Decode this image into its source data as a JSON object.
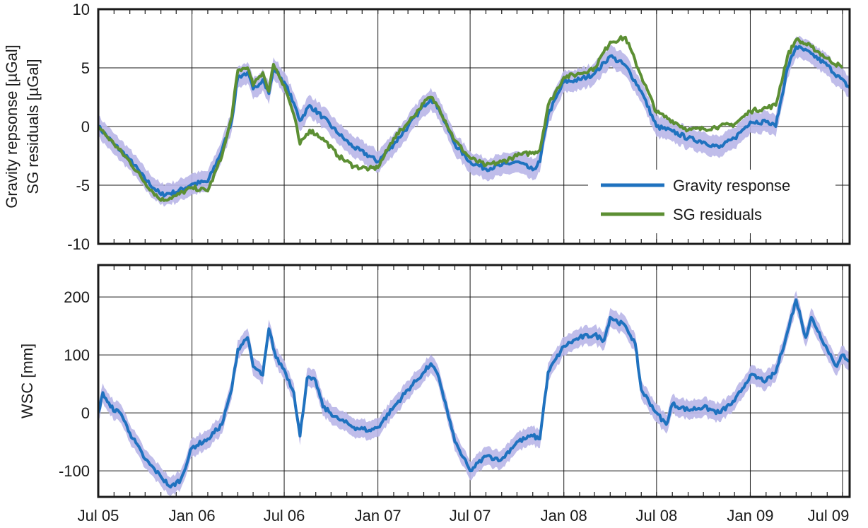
{
  "chart_data": [
    {
      "type": "line",
      "ylabel_lines": [
        "Gravity repsonse [µGal]",
        "SG residuals [µGal]"
      ],
      "ylim": [
        -10,
        10
      ],
      "yticks": [
        -10,
        -5,
        0,
        5,
        10
      ],
      "xlim": [
        "2005-07-01",
        "2009-07-15"
      ],
      "grid": true,
      "legend": {
        "position": "bottom-right",
        "entries": [
          "Gravity response",
          "SG residuals"
        ]
      },
      "series": [
        {
          "name": "Gravity response",
          "color": "#1f72bf",
          "band_color": "#b9b6e8",
          "band_halfwidth": 0.9,
          "points": [
            [
              "2005-07-01",
              0.0
            ],
            [
              "2005-08-01",
              -1.5
            ],
            [
              "2005-09-01",
              -2.8
            ],
            [
              "2005-10-01",
              -4.5
            ],
            [
              "2005-11-01",
              -5.8
            ],
            [
              "2005-12-01",
              -5.6
            ],
            [
              "2006-01-01",
              -4.9
            ],
            [
              "2006-02-01",
              -4.7
            ],
            [
              "2006-03-01",
              -2.0
            ],
            [
              "2006-03-20",
              0.5
            ],
            [
              "2006-04-01",
              4.2
            ],
            [
              "2006-04-20",
              4.6
            ],
            [
              "2006-05-01",
              3.2
            ],
            [
              "2006-05-20",
              4.0
            ],
            [
              "2006-06-01",
              2.8
            ],
            [
              "2006-06-10",
              5.0
            ],
            [
              "2006-07-01",
              3.8
            ],
            [
              "2006-07-20",
              2.0
            ],
            [
              "2006-08-01",
              0.5
            ],
            [
              "2006-08-20",
              1.8
            ],
            [
              "2006-09-15",
              0.8
            ],
            [
              "2006-10-15",
              -0.6
            ],
            [
              "2006-11-15",
              -1.8
            ],
            [
              "2006-12-15",
              -2.5
            ],
            [
              "2007-01-01",
              -3.0
            ],
            [
              "2007-02-01",
              -1.5
            ],
            [
              "2007-03-01",
              0.0
            ],
            [
              "2007-04-01",
              1.8
            ],
            [
              "2007-04-15",
              2.4
            ],
            [
              "2007-05-01",
              1.5
            ],
            [
              "2007-06-01",
              -1.5
            ],
            [
              "2007-07-01",
              -3.0
            ],
            [
              "2007-08-01",
              -3.6
            ],
            [
              "2007-09-01",
              -3.3
            ],
            [
              "2007-10-01",
              -3.0
            ],
            [
              "2007-11-01",
              -3.7
            ],
            [
              "2007-11-15",
              -3.0
            ],
            [
              "2007-12-01",
              1.0
            ],
            [
              "2008-01-01",
              3.8
            ],
            [
              "2008-02-01",
              4.0
            ],
            [
              "2008-03-01",
              4.5
            ],
            [
              "2008-04-01",
              6.0
            ],
            [
              "2008-05-01",
              5.2
            ],
            [
              "2008-06-01",
              3.0
            ],
            [
              "2008-07-01",
              0.0
            ],
            [
              "2008-08-01",
              -0.4
            ],
            [
              "2008-09-01",
              -1.0
            ],
            [
              "2008-10-01",
              -1.3
            ],
            [
              "2008-11-01",
              -1.8
            ],
            [
              "2008-12-01",
              -1.0
            ],
            [
              "2009-01-01",
              0.4
            ],
            [
              "2009-02-01",
              0.4
            ],
            [
              "2009-02-20",
              0.0
            ],
            [
              "2009-03-15",
              5.0
            ],
            [
              "2009-04-01",
              6.8
            ],
            [
              "2009-05-01",
              6.2
            ],
            [
              "2009-06-01",
              5.2
            ],
            [
              "2009-07-15",
              3.3
            ]
          ]
        },
        {
          "name": "SG residuals",
          "color": "#5c8f33",
          "points": [
            [
              "2005-07-01",
              0.0
            ],
            [
              "2005-08-01",
              -1.5
            ],
            [
              "2005-09-01",
              -3.0
            ],
            [
              "2005-10-01",
              -4.8
            ],
            [
              "2005-11-01",
              -6.3
            ],
            [
              "2005-12-01",
              -5.9
            ],
            [
              "2006-01-01",
              -5.2
            ],
            [
              "2006-02-01",
              -5.5
            ],
            [
              "2006-03-01",
              -2.5
            ],
            [
              "2006-03-20",
              0.8
            ],
            [
              "2006-04-01",
              4.8
            ],
            [
              "2006-04-20",
              5.0
            ],
            [
              "2006-05-01",
              3.5
            ],
            [
              "2006-05-20",
              4.6
            ],
            [
              "2006-06-01",
              3.0
            ],
            [
              "2006-06-10",
              5.3
            ],
            [
              "2006-07-01",
              3.5
            ],
            [
              "2006-07-20",
              1.0
            ],
            [
              "2006-08-01",
              -1.5
            ],
            [
              "2006-08-20",
              -0.3
            ],
            [
              "2006-09-15",
              -1.0
            ],
            [
              "2006-10-15",
              -2.5
            ],
            [
              "2006-11-15",
              -3.4
            ],
            [
              "2006-12-15",
              -3.6
            ],
            [
              "2007-01-01",
              -3.5
            ],
            [
              "2007-02-01",
              -1.0
            ],
            [
              "2007-03-01",
              0.3
            ],
            [
              "2007-04-01",
              2.0
            ],
            [
              "2007-04-15",
              2.5
            ],
            [
              "2007-05-01",
              1.6
            ],
            [
              "2007-06-01",
              -1.2
            ],
            [
              "2007-07-01",
              -2.7
            ],
            [
              "2007-08-01",
              -3.3
            ],
            [
              "2007-09-01",
              -3.0
            ],
            [
              "2007-10-01",
              -2.5
            ],
            [
              "2007-11-01",
              -2.2
            ],
            [
              "2007-11-15",
              -2.0
            ],
            [
              "2007-12-01",
              1.8
            ],
            [
              "2008-01-01",
              4.2
            ],
            [
              "2008-02-01",
              4.5
            ],
            [
              "2008-03-01",
              5.0
            ],
            [
              "2008-04-01",
              7.2
            ],
            [
              "2008-05-01",
              7.6
            ],
            [
              "2008-06-01",
              4.3
            ],
            [
              "2008-07-01",
              1.2
            ],
            [
              "2008-08-01",
              0.5
            ],
            [
              "2008-09-01",
              -0.3
            ],
            [
              "2008-10-01",
              -0.2
            ],
            [
              "2008-11-01",
              0.0
            ],
            [
              "2008-12-01",
              0.2
            ],
            [
              "2009-01-01",
              1.3
            ],
            [
              "2009-02-01",
              1.6
            ],
            [
              "2009-02-20",
              1.8
            ],
            [
              "2009-03-15",
              6.0
            ],
            [
              "2009-04-01",
              7.4
            ],
            [
              "2009-05-01",
              6.8
            ],
            [
              "2009-06-01",
              5.8
            ],
            [
              "2009-07-01",
              5.0
            ]
          ]
        }
      ]
    },
    {
      "type": "line",
      "ylabel": "WSC [mm]",
      "ylim": [
        -145,
        255
      ],
      "yticks": [
        -100,
        0,
        100,
        200
      ],
      "xlim": [
        "2005-07-01",
        "2009-07-15"
      ],
      "grid": true,
      "series": [
        {
          "color": "#1f72bf",
          "band_color": "#b9b6e8",
          "band_halfwidth": 16,
          "points": [
            [
              "2005-07-01",
              0
            ],
            [
              "2005-07-10",
              35
            ],
            [
              "2005-07-25",
              10
            ],
            [
              "2005-08-15",
              -2
            ],
            [
              "2005-09-01",
              -35
            ],
            [
              "2005-10-01",
              -80
            ],
            [
              "2005-11-01",
              -110
            ],
            [
              "2005-11-20",
              -128
            ],
            [
              "2005-12-10",
              -115
            ],
            [
              "2006-01-01",
              -60
            ],
            [
              "2006-02-01",
              -45
            ],
            [
              "2006-03-01",
              -20
            ],
            [
              "2006-03-20",
              40
            ],
            [
              "2006-04-01",
              110
            ],
            [
              "2006-04-20",
              130
            ],
            [
              "2006-05-01",
              80
            ],
            [
              "2006-05-20",
              65
            ],
            [
              "2006-06-01",
              145
            ],
            [
              "2006-06-15",
              95
            ],
            [
              "2006-07-01",
              75
            ],
            [
              "2006-07-20",
              35
            ],
            [
              "2006-08-01",
              -40
            ],
            [
              "2006-08-15",
              60
            ],
            [
              "2006-09-01",
              55
            ],
            [
              "2006-09-15",
              10
            ],
            [
              "2006-10-15",
              -10
            ],
            [
              "2006-11-15",
              -25
            ],
            [
              "2006-12-15",
              -30
            ],
            [
              "2007-01-01",
              -25
            ],
            [
              "2007-02-01",
              10
            ],
            [
              "2007-03-01",
              40
            ],
            [
              "2007-04-01",
              70
            ],
            [
              "2007-04-15",
              85
            ],
            [
              "2007-05-01",
              60
            ],
            [
              "2007-06-01",
              -50
            ],
            [
              "2007-07-01",
              -100
            ],
            [
              "2007-08-01",
              -75
            ],
            [
              "2007-09-01",
              -80
            ],
            [
              "2007-10-01",
              -50
            ],
            [
              "2007-11-01",
              -40
            ],
            [
              "2007-11-15",
              -45
            ],
            [
              "2007-12-01",
              70
            ],
            [
              "2008-01-01",
              115
            ],
            [
              "2008-02-01",
              130
            ],
            [
              "2008-03-01",
              135
            ],
            [
              "2008-03-20",
              125
            ],
            [
              "2008-04-01",
              165
            ],
            [
              "2008-05-01",
              150
            ],
            [
              "2008-05-20",
              120
            ],
            [
              "2008-06-01",
              40
            ],
            [
              "2008-07-01",
              0
            ],
            [
              "2008-07-20",
              -20
            ],
            [
              "2008-08-01",
              15
            ],
            [
              "2008-09-01",
              5
            ],
            [
              "2008-10-01",
              10
            ],
            [
              "2008-11-01",
              0
            ],
            [
              "2008-12-01",
              20
            ],
            [
              "2009-01-01",
              65
            ],
            [
              "2009-02-01",
              55
            ],
            [
              "2009-02-20",
              70
            ],
            [
              "2009-03-15",
              140
            ],
            [
              "2009-04-01",
              195
            ],
            [
              "2009-04-20",
              130
            ],
            [
              "2009-05-01",
              165
            ],
            [
              "2009-06-01",
              110
            ],
            [
              "2009-06-20",
              80
            ],
            [
              "2009-07-01",
              100
            ],
            [
              "2009-07-15",
              90
            ]
          ]
        }
      ]
    }
  ],
  "x_tick_labels": [
    {
      "label": "Jul 05",
      "date": "2005-07-01"
    },
    {
      "label": "Jan 06",
      "date": "2006-01-01"
    },
    {
      "label": "Jul 06",
      "date": "2006-07-01"
    },
    {
      "label": "Jan 07",
      "date": "2007-01-01"
    },
    {
      "label": "Jul 07",
      "date": "2007-07-01"
    },
    {
      "label": "Jan 08",
      "date": "2008-01-01"
    },
    {
      "label": "Jul 08",
      "date": "2008-07-01"
    },
    {
      "label": "Jan 09",
      "date": "2009-01-01"
    },
    {
      "label": "Jul 09",
      "date": "2009-07-01"
    }
  ]
}
